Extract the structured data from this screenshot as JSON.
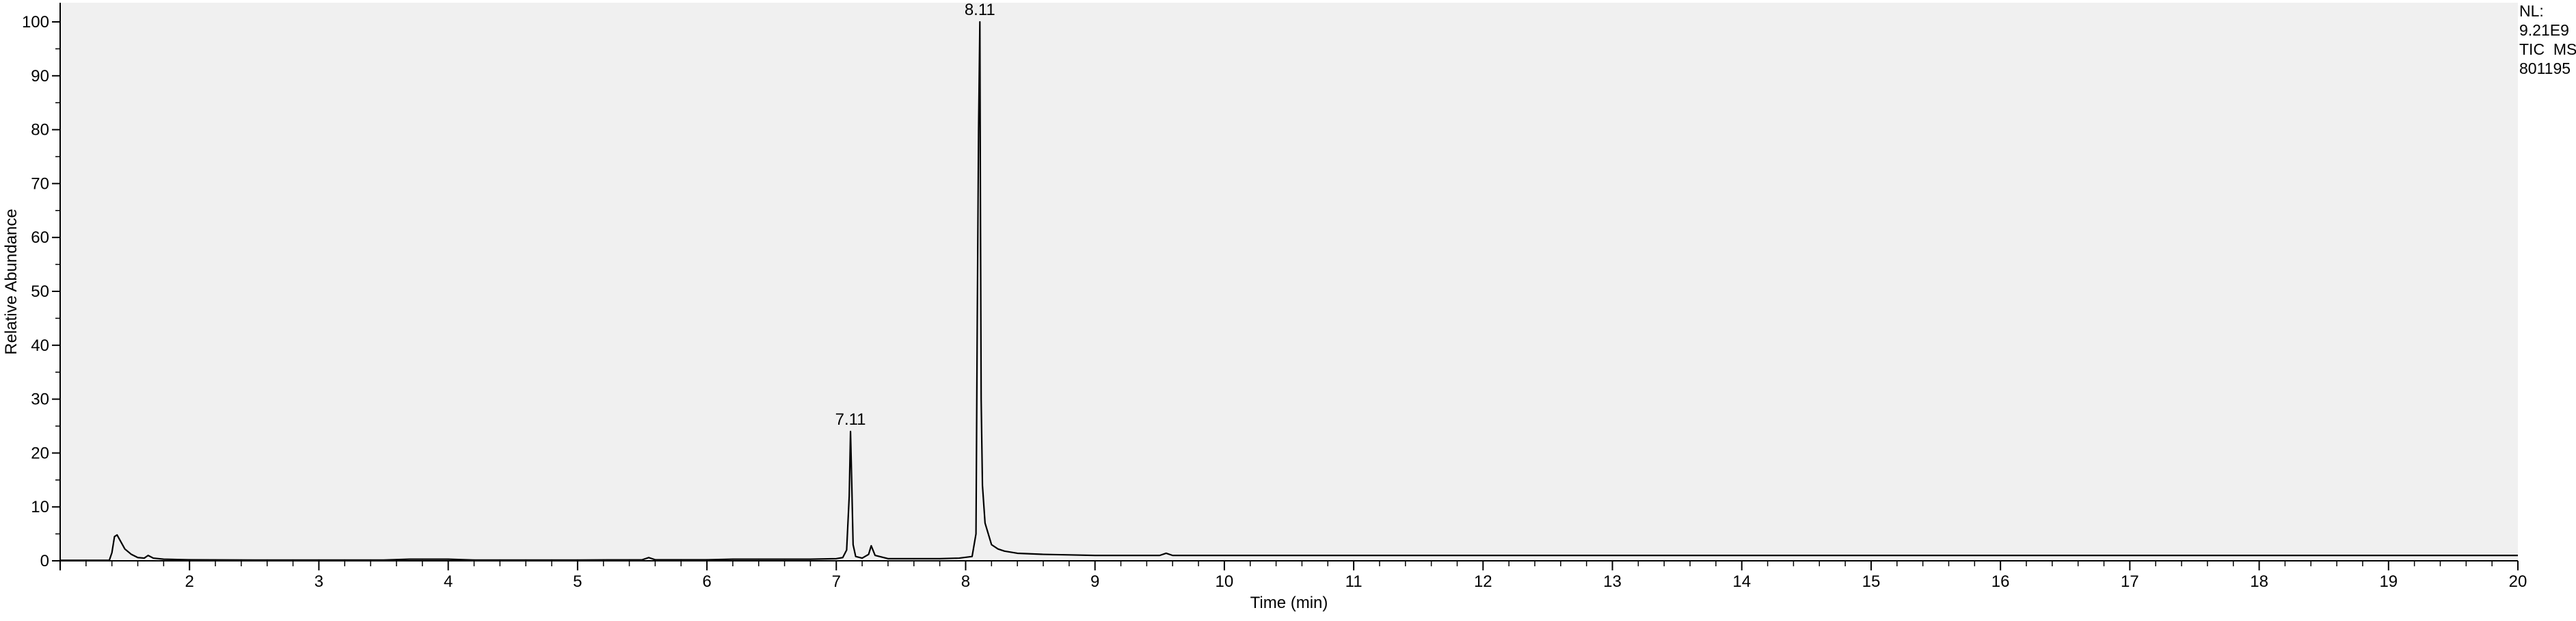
{
  "chart_data": {
    "type": "line",
    "title": "",
    "xlabel": "Time (min)",
    "ylabel": "Relative Abundance",
    "xlim": [
      1.0,
      20.0
    ],
    "ylim": [
      0,
      100
    ],
    "x_major_ticks": [
      2,
      3,
      4,
      5,
      6,
      7,
      8,
      9,
      10,
      11,
      12,
      13,
      14,
      15,
      16,
      17,
      18,
      19,
      20
    ],
    "x_tick_labels": [
      "2",
      "3",
      "4",
      "5",
      "6",
      "7",
      "8",
      "9",
      "10",
      "11",
      "12",
      "13",
      "14",
      "15",
      "16",
      "17",
      "18",
      "19",
      "20"
    ],
    "y_ticks": [
      0,
      10,
      20,
      30,
      40,
      50,
      60,
      70,
      80,
      90,
      100
    ],
    "y_tick_labels": [
      "0",
      "10",
      "20",
      "30",
      "40",
      "50",
      "60",
      "70",
      "80",
      "90",
      "100"
    ],
    "grid": false,
    "plot_background": "#f0f0f0",
    "line_color": "#000000",
    "peak_labels": [
      {
        "x": 7.11,
        "y": 24,
        "label": "7.11"
      },
      {
        "x": 8.11,
        "y": 100,
        "label": "8.11"
      }
    ],
    "info_lines": [
      "NL:",
      "9.21E9",
      "TIC  MS",
      "801195"
    ],
    "series": [
      {
        "x": [
          1.0,
          1.38,
          1.4,
          1.42,
          1.44,
          1.47,
          1.5,
          1.55,
          1.6,
          1.65,
          1.68,
          1.72,
          1.8,
          2.0,
          2.5,
          3.0,
          3.5,
          3.7,
          4.0,
          4.2,
          5.0,
          5.5,
          5.55,
          5.6,
          6.0,
          6.2,
          6.5,
          6.8,
          7.0,
          7.05,
          7.08,
          7.1,
          7.11,
          7.12,
          7.13,
          7.15,
          7.2,
          7.25,
          7.27,
          7.3,
          7.4,
          7.6,
          7.8,
          7.95,
          8.05,
          8.08,
          8.09,
          8.1,
          8.11,
          8.115,
          8.12,
          8.13,
          8.15,
          8.2,
          8.25,
          8.3,
          8.4,
          8.6,
          8.8,
          9.0,
          9.5,
          9.55,
          9.6,
          10.0,
          12.0,
          15.0,
          18.0,
          20.0
        ],
        "y": [
          0.1,
          0.1,
          1.5,
          4.5,
          4.8,
          3.5,
          2.2,
          1.2,
          0.6,
          0.5,
          1.0,
          0.5,
          0.3,
          0.2,
          0.15,
          0.15,
          0.15,
          0.3,
          0.3,
          0.15,
          0.15,
          0.2,
          0.6,
          0.2,
          0.2,
          0.3,
          0.3,
          0.3,
          0.4,
          0.6,
          2.0,
          12.0,
          24.0,
          14.0,
          3.0,
          0.8,
          0.5,
          1.2,
          2.8,
          1.0,
          0.4,
          0.4,
          0.4,
          0.5,
          0.8,
          5.0,
          45.0,
          80.0,
          100.0,
          62.0,
          30.0,
          14.0,
          7.0,
          3.0,
          2.2,
          1.8,
          1.4,
          1.2,
          1.1,
          1.0,
          1.0,
          1.4,
          1.0,
          1.0,
          1.0,
          1.0,
          1.0,
          1.0
        ]
      }
    ]
  }
}
